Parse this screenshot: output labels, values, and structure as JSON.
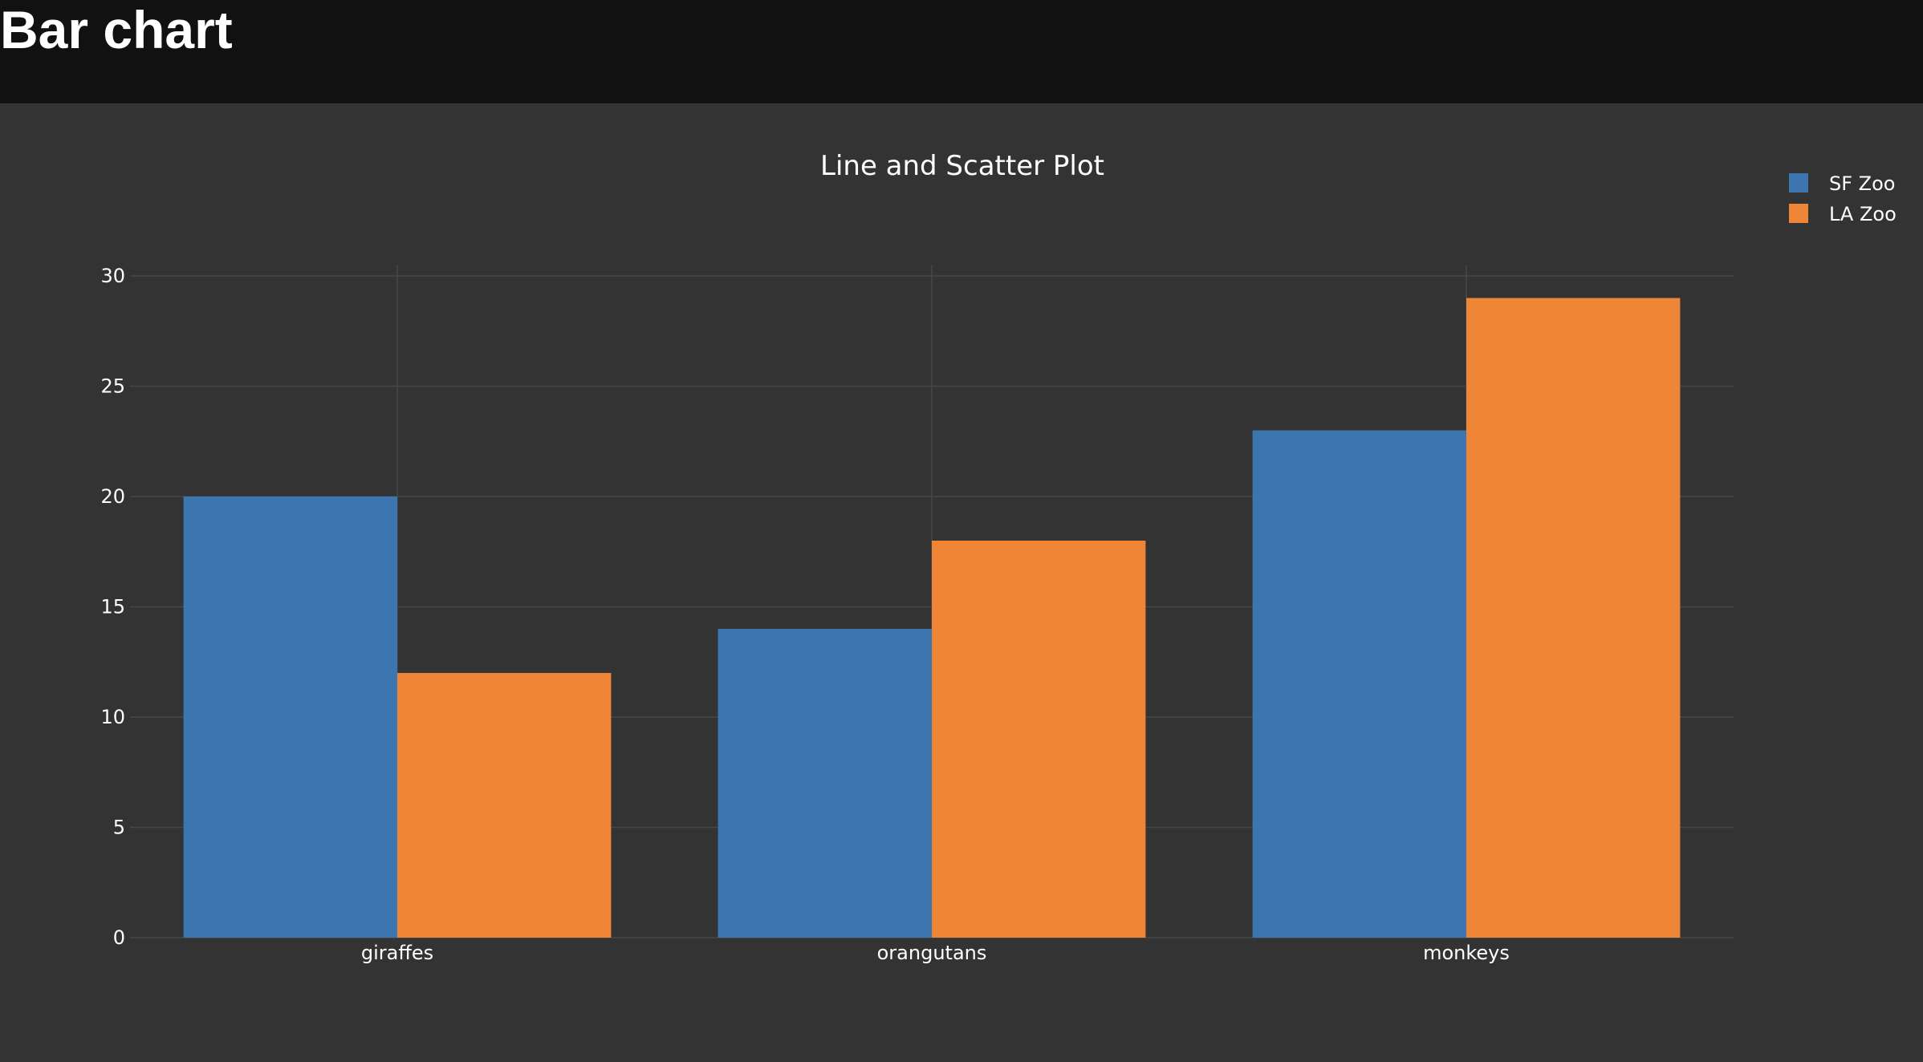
{
  "header": {
    "title": "Bar chart"
  },
  "colors": {
    "header_bg": "#111111",
    "plot_bg": "#333333",
    "grid": "#474747",
    "text": "#ffffff",
    "sf_zoo": "#3c75af",
    "la_zoo": "#ef8536"
  },
  "chart_data": {
    "type": "bar",
    "title": "Line and Scatter Plot",
    "xlabel": "",
    "ylabel": "",
    "categories": [
      "giraffes",
      "orangutans",
      "monkeys"
    ],
    "series": [
      {
        "name": "SF Zoo",
        "values": [
          20,
          14,
          23
        ],
        "color": "#3c75af"
      },
      {
        "name": "LA Zoo",
        "values": [
          12,
          18,
          29
        ],
        "color": "#ef8536"
      }
    ],
    "ylim": [
      0,
      30.5
    ],
    "yticks": [
      0,
      5,
      10,
      15,
      20,
      25,
      30
    ],
    "grid": true,
    "legend_position": "top-right",
    "barmode": "group"
  }
}
